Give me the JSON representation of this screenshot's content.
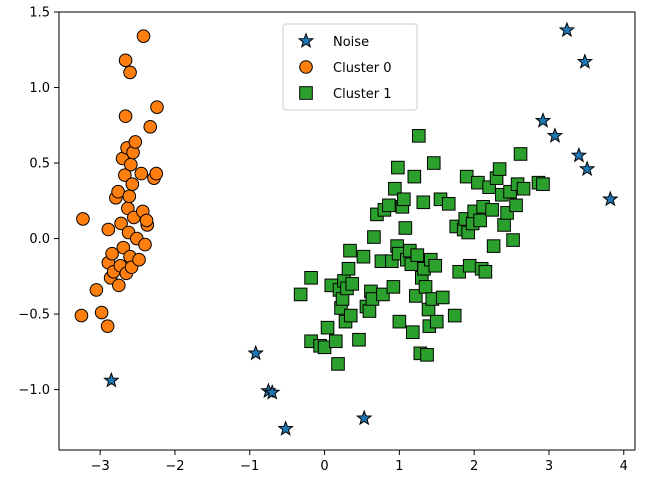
{
  "chart_data": {
    "type": "scatter",
    "xlim": [
      -3.55,
      4.15
    ],
    "ylim": [
      -1.4,
      1.5
    ],
    "xticks": [
      -3,
      -2,
      -1,
      0,
      1,
      2,
      3,
      4
    ],
    "yticks": [
      -1.0,
      -0.5,
      0.0,
      0.5,
      1.0,
      1.5
    ],
    "xtick_labels": [
      "−3",
      "−2",
      "−1",
      "0",
      "1",
      "2",
      "3",
      "4"
    ],
    "ytick_labels": [
      "−1.0",
      "−0.5",
      "0.0",
      "0.5",
      "1.0",
      "1.5"
    ],
    "grid": false,
    "legend_position": "top-center",
    "series": [
      {
        "name": "Noise",
        "marker": "star",
        "color": "#1f77b4",
        "points": [
          [
            -2.85,
            -0.94
          ],
          [
            -0.92,
            -0.76
          ],
          [
            -0.75,
            -1.01
          ],
          [
            -0.7,
            -1.02
          ],
          [
            -0.52,
            -1.26
          ],
          [
            0.53,
            -1.19
          ],
          [
            2.92,
            0.78
          ],
          [
            3.08,
            0.68
          ],
          [
            3.24,
            1.38
          ],
          [
            3.4,
            0.55
          ],
          [
            3.48,
            1.17
          ],
          [
            3.51,
            0.46
          ],
          [
            3.82,
            0.26
          ]
        ]
      },
      {
        "name": "Cluster 0",
        "marker": "circle",
        "color": "#ff7f0e",
        "points": [
          [
            -3.25,
            -0.51
          ],
          [
            -3.23,
            0.13
          ],
          [
            -3.05,
            -0.34
          ],
          [
            -2.98,
            -0.49
          ],
          [
            -2.9,
            -0.58
          ],
          [
            -2.89,
            0.06
          ],
          [
            -2.89,
            -0.16
          ],
          [
            -2.86,
            -0.26
          ],
          [
            -2.84,
            -0.1
          ],
          [
            -2.82,
            -0.22
          ],
          [
            -2.79,
            0.27
          ],
          [
            -2.76,
            0.31
          ],
          [
            -2.75,
            -0.31
          ],
          [
            -2.73,
            -0.18
          ],
          [
            -2.72,
            0.1
          ],
          [
            -2.7,
            0.53
          ],
          [
            -2.69,
            -0.06
          ],
          [
            -2.67,
            0.42
          ],
          [
            -2.66,
            0.81
          ],
          [
            -2.66,
            1.18
          ],
          [
            -2.65,
            -0.23
          ],
          [
            -2.64,
            0.6
          ],
          [
            -2.63,
            0.2
          ],
          [
            -2.62,
            0.04
          ],
          [
            -2.61,
            0.28
          ],
          [
            -2.6,
            1.1
          ],
          [
            -2.6,
            -0.12
          ],
          [
            -2.59,
            0.49
          ],
          [
            -2.58,
            -0.19
          ],
          [
            -2.57,
            0.36
          ],
          [
            -2.56,
            0.57
          ],
          [
            -2.55,
            0.14
          ],
          [
            -2.53,
            0.64
          ],
          [
            -2.51,
            0.0
          ],
          [
            -2.48,
            -0.14
          ],
          [
            -2.45,
            0.43
          ],
          [
            -2.43,
            0.18
          ],
          [
            -2.42,
            1.34
          ],
          [
            -2.4,
            -0.04
          ],
          [
            -2.37,
            0.09
          ],
          [
            -2.33,
            0.74
          ],
          [
            -2.28,
            0.4
          ],
          [
            -2.25,
            0.43
          ],
          [
            -2.24,
            0.87
          ],
          [
            -2.38,
            0.12
          ]
        ]
      },
      {
        "name": "Cluster 1",
        "marker": "square",
        "color": "#2ca02c",
        "points": [
          [
            -0.32,
            -0.37
          ],
          [
            -0.18,
            -0.26
          ],
          [
            -0.18,
            -0.68
          ],
          [
            -0.06,
            -0.71
          ],
          [
            0.0,
            -0.72
          ],
          [
            0.04,
            -0.59
          ],
          [
            0.09,
            -0.31
          ],
          [
            0.15,
            -0.68
          ],
          [
            0.18,
            -0.83
          ],
          [
            0.2,
            -0.34
          ],
          [
            0.22,
            -0.46
          ],
          [
            0.24,
            -0.4
          ],
          [
            0.26,
            -0.28
          ],
          [
            0.28,
            -0.55
          ],
          [
            0.3,
            -0.33
          ],
          [
            0.32,
            -0.2
          ],
          [
            0.34,
            -0.08
          ],
          [
            0.35,
            -0.51
          ],
          [
            0.37,
            -0.3
          ],
          [
            0.46,
            -0.67
          ],
          [
            0.52,
            -0.12
          ],
          [
            0.56,
            -0.45
          ],
          [
            0.6,
            -0.48
          ],
          [
            0.62,
            -0.35
          ],
          [
            0.64,
            -0.4
          ],
          [
            0.66,
            0.01
          ],
          [
            0.7,
            0.16
          ],
          [
            0.76,
            -0.15
          ],
          [
            0.78,
            -0.37
          ],
          [
            0.8,
            0.19
          ],
          [
            0.86,
            0.22
          ],
          [
            0.9,
            -0.15
          ],
          [
            0.92,
            -0.32
          ],
          [
            0.94,
            0.33
          ],
          [
            0.97,
            -0.05
          ],
          [
            0.98,
            0.47
          ],
          [
            0.99,
            -0.1
          ],
          [
            1.0,
            -0.55
          ],
          [
            1.04,
            0.21
          ],
          [
            1.06,
            0.26
          ],
          [
            1.08,
            0.07
          ],
          [
            1.1,
            -0.14
          ],
          [
            1.14,
            -0.08
          ],
          [
            1.16,
            -0.17
          ],
          [
            1.18,
            -0.62
          ],
          [
            1.2,
            0.41
          ],
          [
            1.22,
            -0.38
          ],
          [
            1.24,
            -0.11
          ],
          [
            1.26,
            0.68
          ],
          [
            1.28,
            -0.76
          ],
          [
            1.3,
            -0.26
          ],
          [
            1.32,
            0.24
          ],
          [
            1.33,
            -0.2
          ],
          [
            1.35,
            -0.32
          ],
          [
            1.37,
            -0.77
          ],
          [
            1.39,
            -0.47
          ],
          [
            1.4,
            -0.58
          ],
          [
            1.42,
            -0.14
          ],
          [
            1.44,
            -0.4
          ],
          [
            1.46,
            0.5
          ],
          [
            1.48,
            -0.18
          ],
          [
            1.5,
            -0.55
          ],
          [
            1.55,
            0.26
          ],
          [
            1.58,
            -0.39
          ],
          [
            1.66,
            0.23
          ],
          [
            1.74,
            -0.51
          ],
          [
            1.76,
            0.08
          ],
          [
            1.8,
            -0.22
          ],
          [
            1.86,
            0.06
          ],
          [
            1.88,
            0.13
          ],
          [
            1.9,
            0.41
          ],
          [
            1.92,
            0.04
          ],
          [
            1.94,
            -0.18
          ],
          [
            1.98,
            0.1
          ],
          [
            2.0,
            0.18
          ],
          [
            2.05,
            0.37
          ],
          [
            2.08,
            0.12
          ],
          [
            2.1,
            -0.2
          ],
          [
            2.12,
            0.21
          ],
          [
            2.15,
            -0.22
          ],
          [
            2.2,
            0.34
          ],
          [
            2.24,
            0.19
          ],
          [
            2.26,
            -0.05
          ],
          [
            2.3,
            0.4
          ],
          [
            2.34,
            0.46
          ],
          [
            2.37,
            0.29
          ],
          [
            2.4,
            0.09
          ],
          [
            2.44,
            0.17
          ],
          [
            2.48,
            0.31
          ],
          [
            2.52,
            -0.01
          ],
          [
            2.56,
            0.22
          ],
          [
            2.58,
            0.36
          ],
          [
            2.62,
            0.56
          ],
          [
            2.66,
            0.33
          ],
          [
            2.86,
            0.37
          ],
          [
            2.92,
            0.36
          ]
        ]
      }
    ]
  }
}
